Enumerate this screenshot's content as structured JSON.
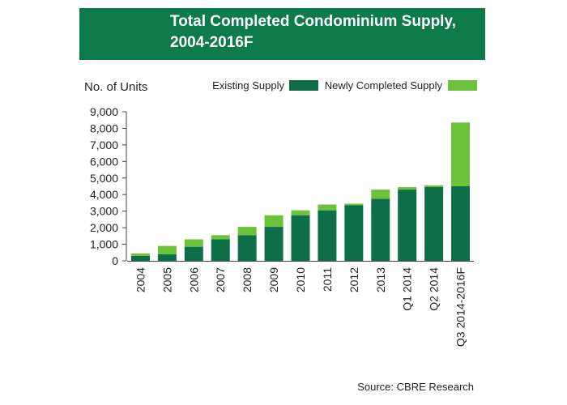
{
  "header": {
    "title_line1": "Total Completed Condominium Supply,",
    "title_line2": "2004-2016F"
  },
  "colors": {
    "header_bg": "#0d7a4a",
    "existing": "#0d6e48",
    "new": "#6cc33a"
  },
  "source": "Source: CBRE Research",
  "chart_data": {
    "type": "bar",
    "stacked": true,
    "ylabel": "No. of Units",
    "ylim": [
      0,
      9000
    ],
    "yticks": [
      0,
      1000,
      2000,
      3000,
      4000,
      5000,
      6000,
      7000,
      8000,
      9000
    ],
    "ytick_labels": [
      "0",
      "1,000",
      "2,000",
      "3,000",
      "4,000",
      "5,000",
      "6,000",
      "7,000",
      "8,000",
      "9,000"
    ],
    "categories": [
      "2004",
      "2005",
      "2006",
      "2007",
      "2008",
      "2009",
      "2010",
      "2011",
      "2012",
      "2013",
      "Q1 2014",
      "Q2 2014",
      "Q3 2014-2016F"
    ],
    "series": [
      {
        "name": "Existing Supply",
        "values": [
          300,
          400,
          850,
          1300,
          1550,
          2050,
          2750,
          3050,
          3350,
          3750,
          4300,
          4450,
          4500
        ]
      },
      {
        "name": "Newly Completed Supply",
        "values": [
          150,
          500,
          450,
          250,
          500,
          700,
          300,
          350,
          100,
          550,
          150,
          100,
          3850
        ]
      }
    ],
    "grid": false,
    "legend_position": "top"
  }
}
